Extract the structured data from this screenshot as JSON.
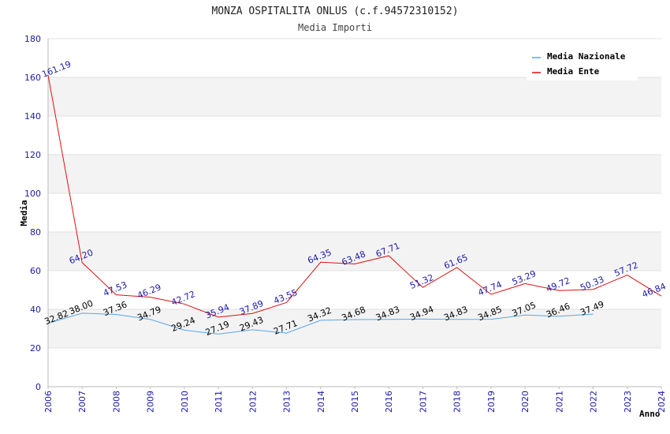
{
  "chart_data": {
    "type": "line",
    "title": "MONZA OSPITALITA ONLUS (c.f.94572310152)",
    "subtitle": "Media Importi",
    "xlabel": "Anno",
    "ylabel": "Media",
    "ylim": [
      0,
      180
    ],
    "yticks": [
      0,
      20,
      40,
      60,
      80,
      100,
      120,
      140,
      160,
      180
    ],
    "x": [
      "2006",
      "2007",
      "2008",
      "2009",
      "2010",
      "2011",
      "2012",
      "2013",
      "2014",
      "2015",
      "2016",
      "2017",
      "2018",
      "2019",
      "2020",
      "2021",
      "2022",
      "2023",
      "2024"
    ],
    "grid": true,
    "legend_position": "top-right",
    "series": [
      {
        "name": "Media Nazionale",
        "color": "#5aa6e6",
        "values": [
          32.82,
          38.0,
          37.36,
          34.79,
          29.24,
          27.19,
          29.43,
          27.71,
          34.32,
          34.68,
          34.83,
          34.94,
          34.83,
          34.85,
          37.05,
          36.46,
          37.49,
          null,
          null
        ],
        "labels": [
          "32.82",
          "38.00",
          "37.36",
          "34.79",
          "29.24",
          "27.19",
          "29.43",
          "27.71",
          "34.32",
          "34.68",
          "34.83",
          "34.94",
          "34.83",
          "34.85",
          "37.05",
          "36.46",
          "37.49",
          "",
          ""
        ]
      },
      {
        "name": "Media Ente",
        "color": "#dd1111",
        "values": [
          161.19,
          64.2,
          47.53,
          46.29,
          42.72,
          35.94,
          37.89,
          43.55,
          64.35,
          63.48,
          67.71,
          51.32,
          61.65,
          47.74,
          53.29,
          49.72,
          50.33,
          57.72,
          46.84
        ],
        "labels": [
          "161.19",
          "64.20",
          "47.53",
          "46.29",
          "42.72",
          "35.94",
          "37.89",
          "43.55",
          "64.35",
          "63.48",
          "67.71",
          "51.32",
          "61.65",
          "47.74",
          "53.29",
          "49.72",
          "50.33",
          "57.72",
          "46.84"
        ]
      }
    ]
  }
}
